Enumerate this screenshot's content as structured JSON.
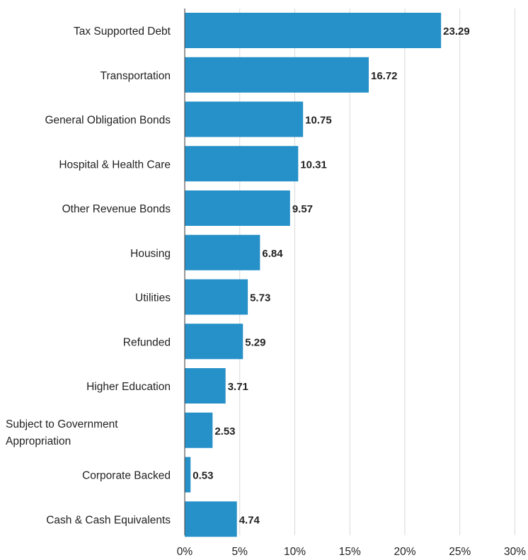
{
  "chart_data": {
    "type": "bar",
    "orientation": "horizontal",
    "categories": [
      "Tax Supported Debt",
      "Transportation",
      "General Obligation Bonds",
      "Hospital & Health Care",
      "Other Revenue Bonds",
      "Housing",
      "Utilities",
      "Refunded",
      "Higher Education",
      "Subject to Government Appropriation",
      "Corporate Backed",
      "Cash & Cash Equivalents"
    ],
    "values": [
      23.29,
      16.72,
      10.75,
      10.31,
      9.57,
      6.84,
      5.73,
      5.29,
      3.71,
      2.53,
      0.53,
      4.74
    ],
    "value_labels": [
      "23.29",
      "16.72",
      "10.75",
      "10.31",
      "9.57",
      "6.84",
      "5.73",
      "5.29",
      "3.71",
      "2.53",
      "0.53",
      "4.74"
    ],
    "x_ticks": [
      "0%",
      "5%",
      "10%",
      "15%",
      "20%",
      "25%",
      "30%"
    ],
    "x_tick_values": [
      0,
      5,
      10,
      15,
      20,
      25,
      30
    ],
    "xlim": [
      0,
      30
    ],
    "title": "",
    "xlabel": "",
    "ylabel": "",
    "grid": true,
    "bar_color": "#2690c8"
  }
}
